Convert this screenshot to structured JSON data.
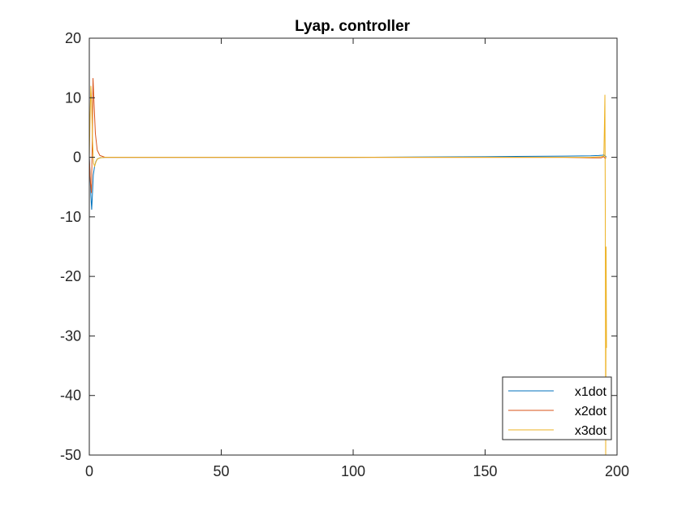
{
  "chart_data": {
    "type": "line",
    "title": "Lyap. controller",
    "xlabel": "",
    "ylabel": "",
    "xlim": [
      0,
      200
    ],
    "ylim": [
      -50,
      20
    ],
    "xticks": [
      0,
      50,
      100,
      150,
      200
    ],
    "yticks": [
      -50,
      -40,
      -30,
      -20,
      -10,
      0,
      10,
      20
    ],
    "xtick_labels": [
      "0",
      "50",
      "100",
      "150",
      "200"
    ],
    "ytick_labels": [
      "-50",
      "-40",
      "-30",
      "-20",
      "-10",
      "0",
      "10",
      "20"
    ],
    "grid": false,
    "legend_position": "bottom-right",
    "series": [
      {
        "name": "x1dot",
        "color": "#0072BD",
        "x": [
          0,
          0.3,
          0.6,
          0.9,
          1.2,
          1.5,
          2,
          2.5,
          3,
          4,
          6,
          10,
          50,
          100,
          150,
          180,
          190,
          193,
          194.5,
          195,
          195.3,
          195.6,
          195.9
        ],
        "y": [
          0,
          -3,
          -6.5,
          -8.8,
          -6,
          -3,
          -1.5,
          -0.7,
          -0.3,
          -0.1,
          0,
          0,
          0,
          0,
          0.1,
          0.2,
          0.25,
          0.3,
          0.35,
          0.4,
          0.3,
          0.2,
          0.1
        ]
      },
      {
        "name": "x2dot",
        "color": "#D95319",
        "x": [
          0,
          0.4,
          0.8,
          1.1,
          1.4,
          1.8,
          2.3,
          3,
          4,
          6,
          10,
          50,
          100,
          150,
          180,
          190,
          194,
          195,
          195.5,
          195.9
        ],
        "y": [
          0,
          -4,
          -6,
          2,
          13.3,
          9,
          4,
          1.2,
          0.3,
          0,
          0,
          0,
          0,
          0,
          0,
          -0.1,
          -0.1,
          0.1,
          -0.2,
          0
        ]
      },
      {
        "name": "x3dot",
        "color": "#EDB120",
        "x": [
          0,
          0.3,
          0.6,
          0.9,
          1.2,
          1.6,
          2,
          2.5,
          3,
          4,
          6,
          10,
          50,
          100,
          150,
          180,
          190,
          194,
          195,
          195.2,
          195.4,
          195.55,
          195.7,
          195.85,
          196
        ],
        "y": [
          0,
          7,
          12,
          9,
          3,
          -1,
          -1.5,
          -0.8,
          -0.3,
          -0.1,
          0,
          0,
          0,
          0,
          0,
          0,
          0,
          0.1,
          0.2,
          5,
          10.5,
          -10,
          -50,
          -15,
          -32
        ]
      }
    ]
  }
}
